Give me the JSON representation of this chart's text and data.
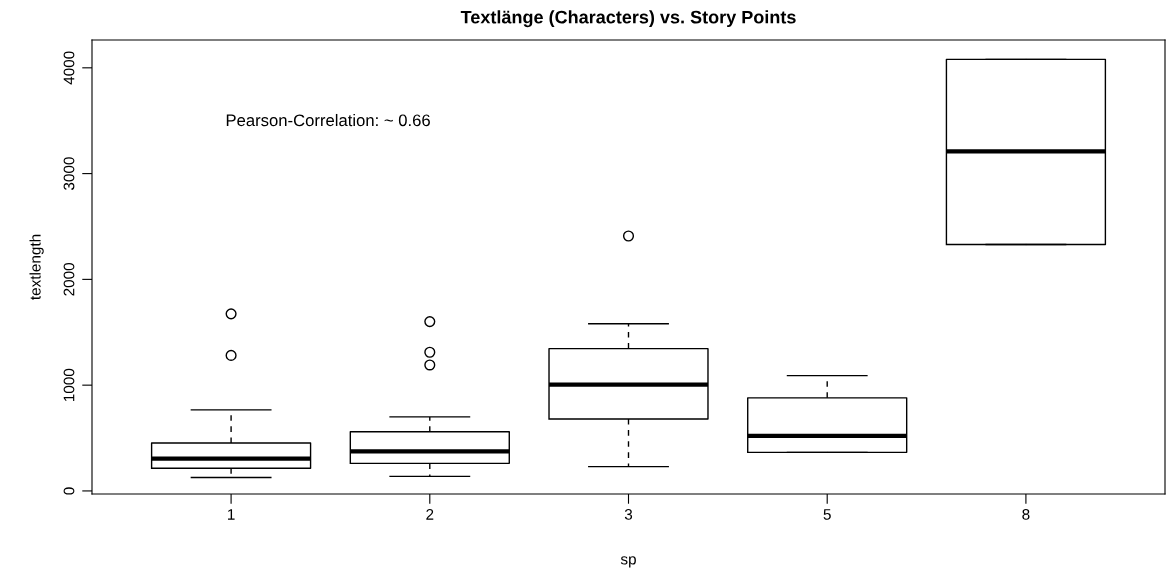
{
  "chart_data": {
    "type": "box",
    "title": "Textlänge (Characters) vs. Story Points",
    "xlabel": "sp",
    "ylabel": "textlength",
    "categories": [
      "1",
      "2",
      "3",
      "5",
      "8"
    ],
    "boxes": [
      {
        "low": 127,
        "q1": 214,
        "median": 305,
        "q3": 453,
        "high": 766,
        "outliers": [
          1281,
          1674
        ]
      },
      {
        "low": 138,
        "q1": 261,
        "median": 374,
        "q3": 559,
        "high": 700,
        "outliers": [
          1191,
          1311,
          1601
        ]
      },
      {
        "low": 230,
        "q1": 680,
        "median": 1005,
        "q3": 1345,
        "high": 1580,
        "outliers": [
          2410
        ]
      },
      {
        "low": 365,
        "q1": 365,
        "median": 520,
        "q3": 880,
        "high": 1090
      },
      {
        "low": 2330,
        "q1": 2330,
        "median": 3210,
        "q3": 4080,
        "high": 4080
      }
    ],
    "ylim": [
      -29,
      4263
    ],
    "yticks": [
      0,
      1000,
      2000,
      3000,
      4000
    ],
    "annotations": [
      "Pearson-Correlation: ~ 0.66"
    ],
    "grid": false,
    "legend": false
  }
}
